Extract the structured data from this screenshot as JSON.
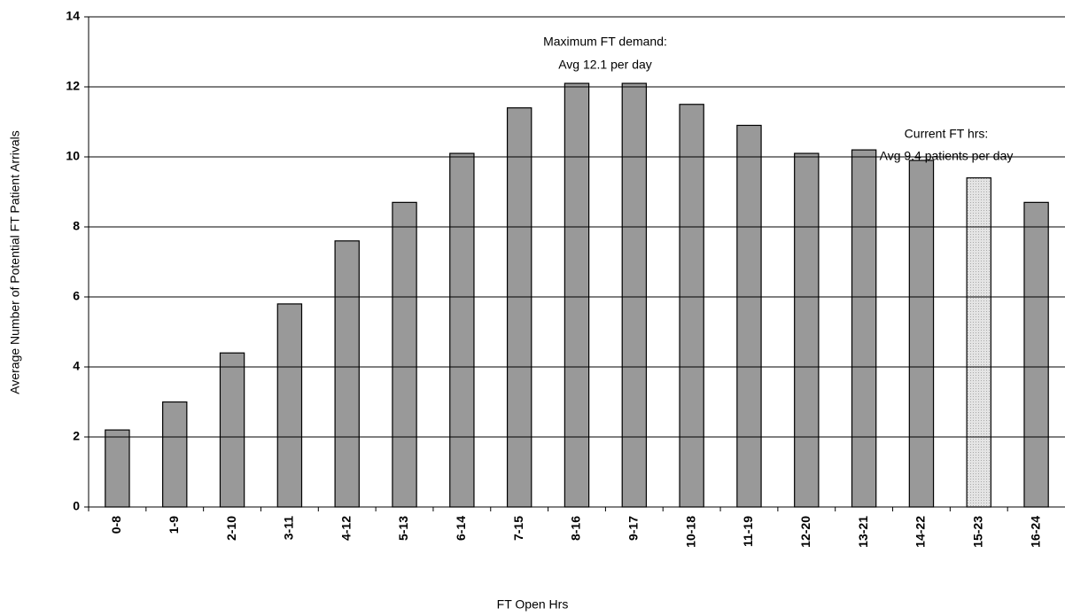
{
  "chart_data": {
    "type": "bar",
    "x_label": "FT Open Hrs",
    "y_label": "Average Number of Potential FT Patient Arrivals",
    "categories": [
      "0-8",
      "1-9",
      "2-10",
      "3-11",
      "4-12",
      "5-13",
      "6-14",
      "7-15",
      "8-16",
      "9-17",
      "10-18",
      "11-19",
      "12-20",
      "13-21",
      "14-22",
      "15-23",
      "16-24"
    ],
    "values": [
      2.2,
      3.0,
      4.4,
      5.8,
      7.6,
      8.7,
      10.1,
      11.4,
      12.1,
      12.1,
      11.5,
      10.9,
      10.1,
      10.2,
      9.9,
      9.4,
      8.7
    ],
    "colors": [
      "#999999",
      "#999999",
      "#999999",
      "#999999",
      "#999999",
      "#999999",
      "#999999",
      "#999999",
      "#999999",
      "#999999",
      "#999999",
      "#999999",
      "#999999",
      "#999999",
      "#999999",
      "#dddddd",
      "#999999"
    ],
    "ylim": [
      0,
      14
    ],
    "yticks": [
      0,
      2,
      4,
      6,
      8,
      10,
      12,
      14
    ],
    "grid": true,
    "annotations": [
      {
        "lines": [
          "Maximum FT demand:",
          "Avg 12.1 per day"
        ]
      },
      {
        "lines": [
          "Current FT hrs:",
          "Avg 9.4 patients per day"
        ]
      }
    ]
  }
}
